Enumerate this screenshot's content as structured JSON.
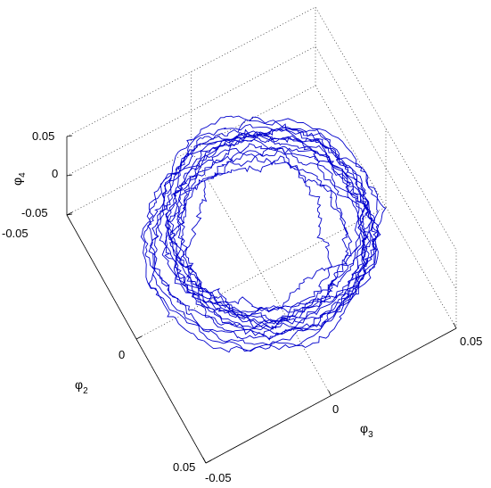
{
  "chart_data": {
    "type": "line",
    "projection": "3d",
    "title": "",
    "xlabel_symbol": "φ",
    "xlabel_sub": "2",
    "ylabel_symbol": "φ",
    "ylabel_sub": "3",
    "zlabel_symbol": "φ",
    "zlabel_sub": "4",
    "xlim": [
      -0.05,
      0.05
    ],
    "ylim": [
      -0.05,
      0.05
    ],
    "zlim": [
      -0.05,
      0.05
    ],
    "x_ticks": [
      "-0.05",
      "0",
      "0.05"
    ],
    "y_ticks": [
      "-0.05",
      "0",
      "0.05"
    ],
    "z_ticks": [
      "-0.05",
      "0",
      "0.05"
    ],
    "grid": true,
    "legend": false,
    "series": [
      {
        "color": "#0000cc",
        "description_shape": "noisy trajectory winding around a ring (annulus) centered near the origin in the phi2-phi3 plane with radius about 0.03-0.045, small phi4 excursions",
        "ring_inner_radius": 0.022,
        "ring_outer_radius": 0.046,
        "turns": 16
      }
    ]
  }
}
